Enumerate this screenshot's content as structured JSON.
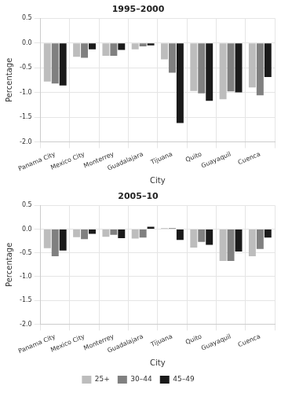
{
  "chart_data": [
    {
      "type": "bar",
      "title": "1995–2000",
      "x_label": "City",
      "y_label": "Percentage",
      "categories": [
        "Panama City",
        "Mexico City",
        "Monterrey",
        "Guadalajara",
        "Tijuana",
        "Quito",
        "Guayaquil",
        "Cuenca"
      ],
      "series": [
        {
          "name": "25+",
          "color": "#bdbdbd",
          "values": [
            -0.78,
            -0.28,
            -0.26,
            -0.13,
            -0.33,
            -0.97,
            -1.14,
            -0.9
          ]
        },
        {
          "name": "30–44",
          "color": "#808080",
          "values": [
            -0.82,
            -0.3,
            -0.26,
            -0.07,
            -0.6,
            -1.02,
            -0.98,
            -1.06
          ]
        },
        {
          "name": "45–49",
          "color": "#1a1a1a",
          "values": [
            -0.86,
            -0.13,
            -0.14,
            -0.05,
            -1.62,
            -1.17,
            -1.0,
            -0.69
          ]
        }
      ],
      "ylim": [
        -2.0,
        0.5
      ],
      "yticks": [
        {
          "value": -2.0,
          "label": "-2.0"
        },
        {
          "value": -1.5,
          "label": "-1.5"
        },
        {
          "value": -1.0,
          "label": "-1.0"
        },
        {
          "value": -0.5,
          "label": "-0.5"
        },
        {
          "value": 0.0,
          "label": "0.0"
        },
        0.5
      ],
      "grid": true
    },
    {
      "type": "bar",
      "title": "2005–10",
      "x_label": "City",
      "y_label": "Percentage",
      "categories": [
        "Panama City",
        "Mexico City",
        "Monterrey",
        "Guadalajara",
        "Tijuana",
        "Quito",
        "Guayaquil",
        "Cuenca"
      ],
      "series": [
        {
          "name": "25+",
          "color": "#bdbdbd",
          "values": [
            -0.4,
            -0.17,
            -0.16,
            -0.2,
            0.02,
            -0.39,
            -0.67,
            -0.57
          ]
        },
        {
          "name": "30–44",
          "color": "#808080",
          "values": [
            -0.57,
            -0.21,
            -0.12,
            -0.18,
            0.02,
            -0.27,
            -0.67,
            -0.42
          ]
        },
        {
          "name": "45–49",
          "color": "#1a1a1a",
          "values": [
            -0.45,
            -0.1,
            -0.19,
            0.05,
            -0.23,
            -0.33,
            -0.47,
            -0.18
          ]
        }
      ],
      "ylim": [
        -2.0,
        0.5
      ],
      "yticks": [
        {
          "value": -2.0,
          "label": "-2.0"
        },
        {
          "value": -1.5,
          "label": "-1.5"
        },
        {
          "value": -1.0,
          "label": "-1.0"
        },
        {
          "value": -0.5,
          "label": "-0.5"
        },
        {
          "value": 0.0,
          "label": "0.0"
        },
        0.5
      ],
      "grid": true,
      "legend": "bottom"
    }
  ]
}
